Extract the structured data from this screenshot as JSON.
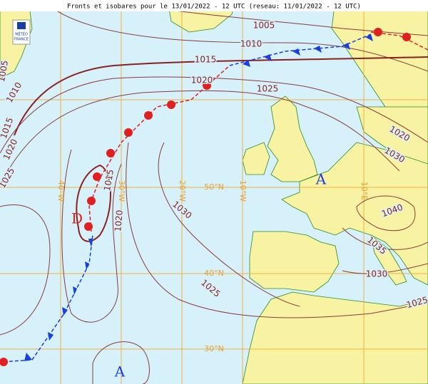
{
  "title": "Fronts et isobares pour le 13/01/2022 - 12 UTC (reseau: 11/01/2022 - 12 UTC)",
  "logo": [
    "MÉTÉO",
    "FRANCE"
  ],
  "isobar_labels": [
    "1005",
    "1010",
    "1015",
    "1020",
    "1025",
    "1015",
    "1020",
    "1030",
    "1025",
    "1020",
    "1030",
    "1040",
    "1035",
    "1030",
    "1025",
    "1005",
    "1010",
    "1015",
    "1020",
    "1025"
  ],
  "graticule_labels": [
    "50°N",
    "40°N",
    "30°N",
    "40°W",
    "30°W",
    "20°W",
    "10°W",
    "10°E"
  ],
  "pressure_centers": [
    "D",
    "A",
    "A"
  ]
}
